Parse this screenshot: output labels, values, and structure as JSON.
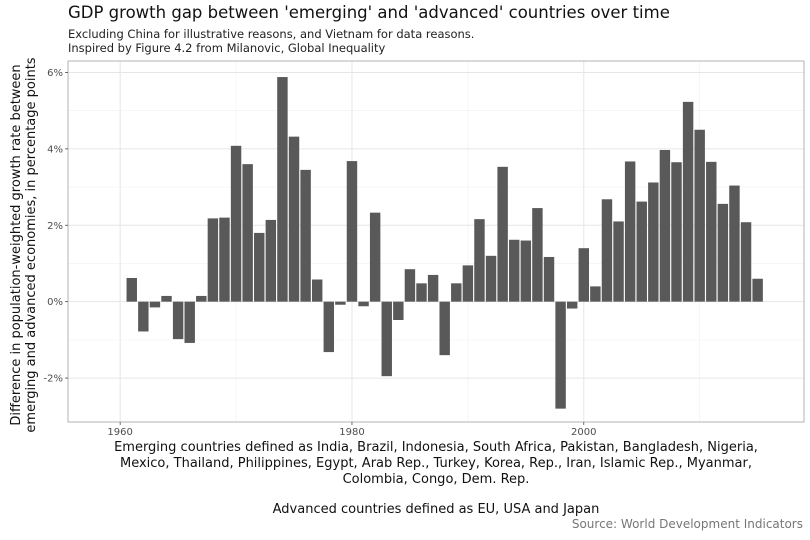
{
  "chart_data": {
    "type": "bar",
    "title": "GDP growth gap between 'emerging' and 'advanced' countries over time",
    "subtitle": [
      "Excluding China for illustrative reasons, and Vietnam for data reasons.",
      "Inspired by Figure 4.2 from Milanovic, Global Inequality"
    ],
    "ylabel": [
      "Difference in population-weighted growth rate between",
      "emerging and advanced economies, in percentage points"
    ],
    "xlabel": [
      "Emerging countries defined as India, Brazil, Indonesia, South Africa, Pakistan, Bangladesh, Nigeria,",
      "Mexico, Thailand, Philippines, Egypt, Arab Rep., Turkey, Korea, Rep., Iran, Islamic Rep., Myanmar,",
      "Colombia, Congo, Dem. Rep.",
      "",
      "Advanced countries defined as EU, USA and Japan"
    ],
    "caption": "Source: World Development Indicators",
    "x": [
      1961,
      1962,
      1963,
      1964,
      1965,
      1966,
      1967,
      1968,
      1969,
      1970,
      1971,
      1972,
      1973,
      1974,
      1975,
      1976,
      1977,
      1978,
      1979,
      1980,
      1981,
      1982,
      1983,
      1984,
      1985,
      1986,
      1987,
      1988,
      1989,
      1990,
      1991,
      1992,
      1993,
      1994,
      1995,
      1996,
      1997,
      1998,
      1999,
      2000,
      2001,
      2002,
      2003,
      2004,
      2005,
      2006,
      2007,
      2008,
      2009,
      2010,
      2011,
      2012,
      2013,
      2014,
      2015
    ],
    "values": [
      0.62,
      -0.78,
      -0.15,
      0.15,
      -0.98,
      -1.08,
      0.15,
      2.18,
      2.2,
      4.08,
      3.6,
      1.8,
      2.14,
      5.88,
      4.32,
      3.45,
      0.58,
      -1.32,
      -0.08,
      3.68,
      -0.12,
      2.33,
      -1.95,
      -0.48,
      0.85,
      0.48,
      0.7,
      -1.4,
      0.48,
      0.95,
      2.16,
      1.2,
      3.53,
      1.62,
      1.6,
      2.45,
      1.17,
      -2.8,
      -0.18,
      1.4,
      0.4,
      2.68,
      2.1,
      3.67,
      2.62,
      3.12,
      3.97,
      3.65,
      5.23,
      4.5,
      3.66,
      2.56,
      3.04,
      2.08,
      0.6
    ],
    "xticks": [
      1960,
      1980,
      2000
    ],
    "xtick_labels": [
      "1960",
      "1980",
      "2000"
    ],
    "yticks": [
      -2,
      0,
      2,
      4,
      6
    ],
    "ytick_labels": [
      "-2%",
      "0%",
      "2%",
      "4%",
      "6%"
    ],
    "xlim": [
      1955.5,
      2019
    ],
    "ylim": [
      -3.15,
      6.3
    ],
    "bar_color": "#595959",
    "grid": true,
    "legend": "none"
  }
}
